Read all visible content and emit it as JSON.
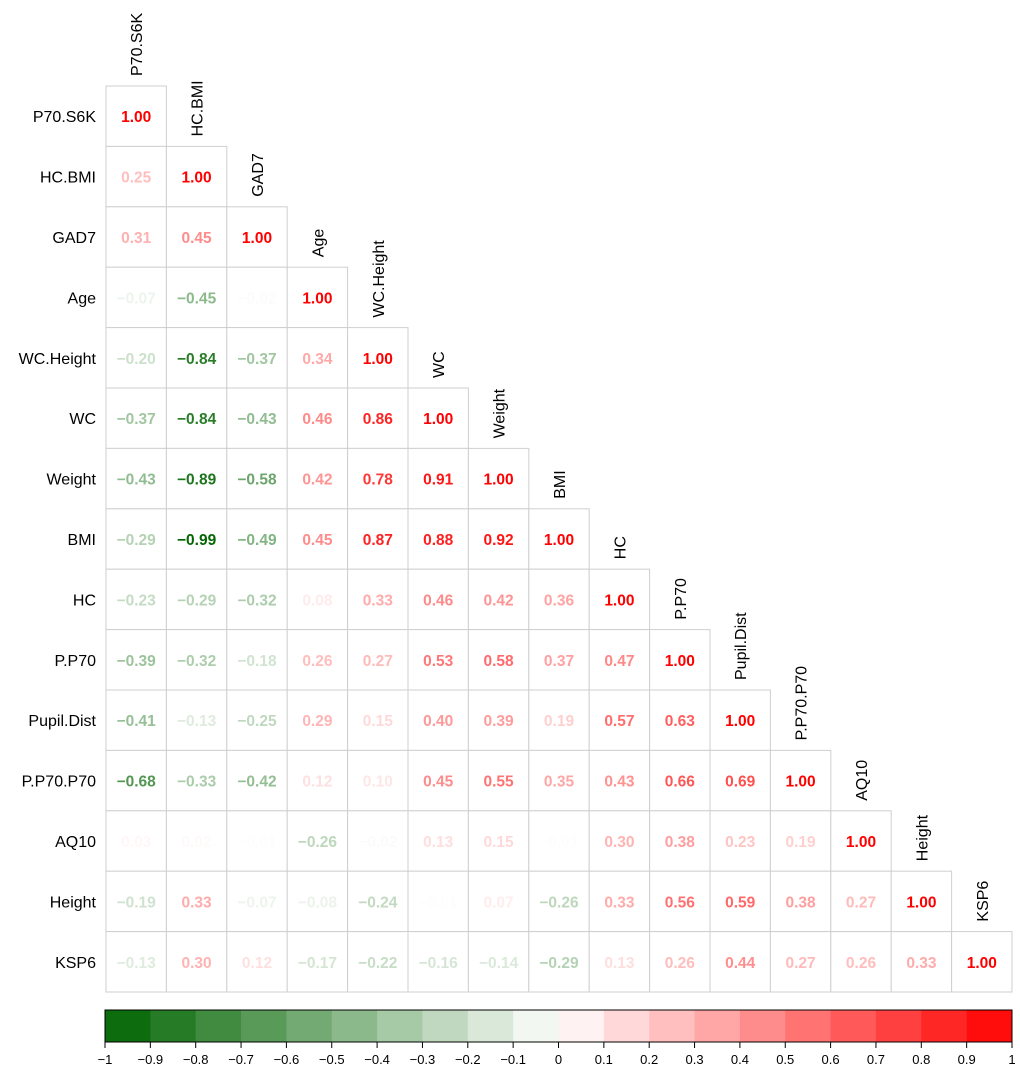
{
  "chart_data": {
    "type": "heatmap",
    "subtype": "lower-triangular correlation matrix",
    "variables": [
      "P70.S6K",
      "HC.BMI",
      "GAD7",
      "Age",
      "WC.Height",
      "WC",
      "Weight",
      "BMI",
      "HC",
      "P.P70",
      "Pupil.Dist",
      "P.P70.P70",
      "AQ10",
      "Height",
      "KSP6"
    ],
    "matrix": [
      [
        1.0
      ],
      [
        0.25,
        1.0
      ],
      [
        0.31,
        0.45,
        1.0
      ],
      [
        -0.07,
        -0.45,
        -0.02,
        1.0
      ],
      [
        -0.2,
        -0.84,
        -0.37,
        0.34,
        1.0
      ],
      [
        -0.37,
        -0.84,
        -0.43,
        0.46,
        0.86,
        1.0
      ],
      [
        -0.43,
        -0.89,
        -0.58,
        0.42,
        0.78,
        0.91,
        1.0
      ],
      [
        -0.29,
        -0.99,
        -0.49,
        0.45,
        0.87,
        0.88,
        0.92,
        1.0
      ],
      [
        -0.23,
        -0.29,
        -0.32,
        0.08,
        0.33,
        0.46,
        0.42,
        0.36,
        1.0
      ],
      [
        -0.39,
        -0.32,
        -0.18,
        0.26,
        0.27,
        0.53,
        0.58,
        0.37,
        0.47,
        1.0
      ],
      [
        -0.41,
        -0.13,
        -0.25,
        0.29,
        0.15,
        0.4,
        0.39,
        0.19,
        0.57,
        0.63,
        1.0
      ],
      [
        -0.68,
        -0.33,
        -0.42,
        0.12,
        0.1,
        0.45,
        0.55,
        0.35,
        0.43,
        0.66,
        0.69,
        1.0
      ],
      [
        0.03,
        0.02,
        -0.01,
        -0.26,
        -0.02,
        0.13,
        0.15,
        -0.01,
        0.3,
        0.38,
        0.23,
        0.19,
        1.0
      ],
      [
        -0.19,
        0.33,
        -0.07,
        -0.08,
        -0.24,
        -0.01,
        0.07,
        -0.26,
        0.33,
        0.56,
        0.59,
        0.38,
        0.27,
        1.0
      ],
      [
        -0.13,
        0.3,
        0.12,
        -0.17,
        -0.22,
        -0.16,
        -0.14,
        -0.29,
        0.13,
        0.26,
        0.44,
        0.27,
        0.26,
        0.33,
        1.0
      ]
    ],
    "value_format": "2 decimals, text colored by value",
    "color_scale": {
      "min": -1,
      "max": 1,
      "low_color": "#006400",
      "mid_color": "#ffffff",
      "high_color": "#ff0000",
      "ticks": [
        "-1",
        "-0.9",
        "-0.8",
        "-0.7",
        "-0.6",
        "-0.5",
        "-0.4",
        "-0.3",
        "-0.2",
        "-0.1",
        "0",
        "0.1",
        "0.2",
        "0.3",
        "0.4",
        "0.5",
        "0.6",
        "0.7",
        "0.8",
        "0.9",
        "1"
      ],
      "bins": 20
    },
    "grid": true,
    "legend_position": "bottom"
  }
}
